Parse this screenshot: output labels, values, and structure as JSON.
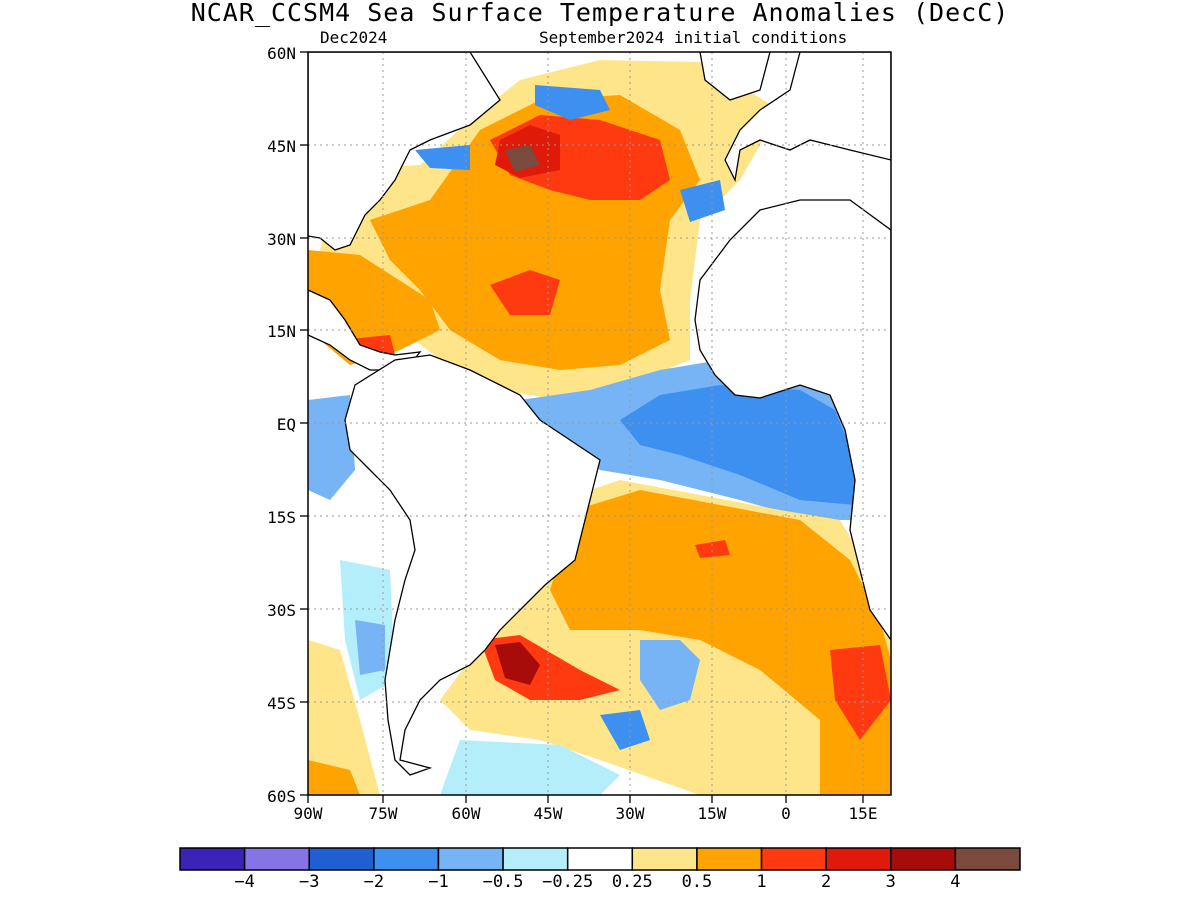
{
  "title": "NCAR_CCSM4 Sea Surface Temperature Anomalies (DecC)",
  "subtitle_left": "Dec2024",
  "subtitle_right": "September2024 initial conditions",
  "lat_labels": [
    "60N",
    "45N",
    "30N",
    "15N",
    "EQ",
    "15S",
    "30S",
    "45S",
    "60S"
  ],
  "lon_labels": [
    "90W",
    "75W",
    "60W",
    "45W",
    "30W",
    "15W",
    "0",
    "15E"
  ],
  "colorbar": {
    "colors": [
      "#3b23b8",
      "#8474e6",
      "#1f5fd1",
      "#3d8ff0",
      "#76b4f5",
      "#b3eefa",
      "#ffffff",
      "#ffe58a",
      "#ffa300",
      "#ff3a10",
      "#e01a0a",
      "#a80c0a",
      "#7a4a3e"
    ],
    "tick_labels": [
      "−4",
      "−3",
      "−2",
      "−1",
      "−0.5",
      "−0.25",
      "0.25",
      "0.5",
      "1",
      "2",
      "3",
      "4"
    ]
  }
}
